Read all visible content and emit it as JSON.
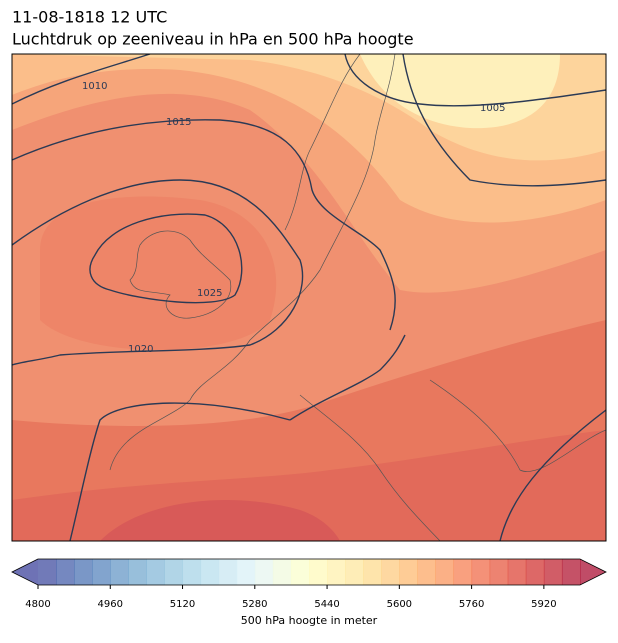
{
  "header": {
    "title": [
      "11-08-1818 12 UTC",
      "Luchtdruk op zeeniveau in hPa en 500 hPa hoogte"
    ]
  },
  "map": {
    "isobar_labels": [
      "1010",
      "1015",
      "1005",
      "1025",
      "1020"
    ]
  },
  "colorbar": {
    "lim": [
      4800,
      6000
    ],
    "step": 40,
    "ticks": [
      4800,
      4960,
      5120,
      5280,
      5440,
      5600,
      5760,
      5920
    ],
    "label": "500 hPa hoogte in meter",
    "colormap": [
      "#313695",
      "#4575b4",
      "#74add1",
      "#abd9e9",
      "#e0f3f8",
      "#ffffbf",
      "#fee090",
      "#fdae61",
      "#f46d43",
      "#d73027",
      "#a50026"
    ],
    "opacity": 0.7
  }
}
